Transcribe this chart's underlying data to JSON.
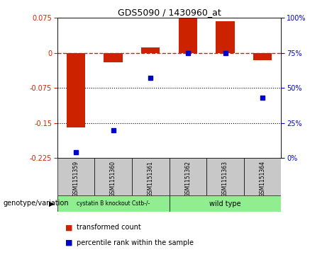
{
  "title": "GDS5090 / 1430960_at",
  "samples": [
    "GSM1151359",
    "GSM1151360",
    "GSM1151361",
    "GSM1151362",
    "GSM1151363",
    "GSM1151364"
  ],
  "red_values": [
    -0.16,
    -0.02,
    0.012,
    0.078,
    0.068,
    -0.015
  ],
  "blue_values": [
    4,
    20,
    57,
    75,
    75,
    43
  ],
  "ylim_left": [
    -0.225,
    0.075
  ],
  "ylim_right": [
    0,
    100
  ],
  "yticks_left": [
    0.075,
    0,
    -0.075,
    -0.15,
    -0.225
  ],
  "yticks_right": [
    100,
    75,
    50,
    25,
    0
  ],
  "group1_label": "cystatin B knockout Cstb-/-",
  "group2_label": "wild type",
  "group1_indices": [
    0,
    1,
    2
  ],
  "group2_indices": [
    3,
    4,
    5
  ],
  "group1_color": "#90EE90",
  "group2_color": "#90EE90",
  "bar_color": "#CC2200",
  "scatter_color": "#0000CC",
  "legend_label_red": "transformed count",
  "legend_label_blue": "percentile rank within the sample",
  "genotype_label": "genotype/variation",
  "background_color": "#ffffff",
  "plot_bg_color": "#ffffff",
  "zero_line_color": "#CC2200",
  "bar_width": 0.5
}
